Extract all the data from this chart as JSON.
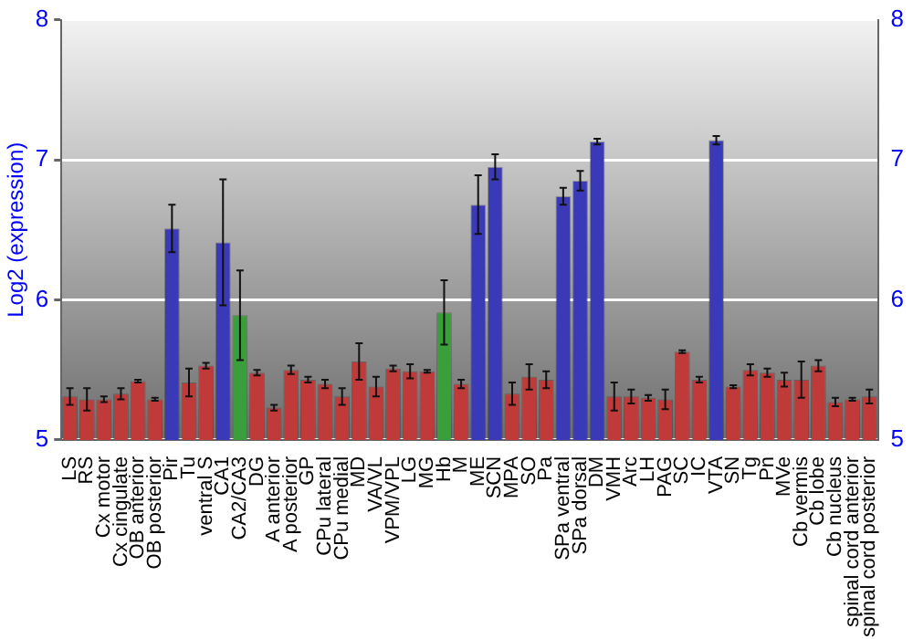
{
  "chart_data": {
    "type": "bar",
    "ylabel": "Log2 (expression)",
    "categories": [
      "LS",
      "RS",
      "Cx motor",
      "Cx cingulate",
      "OB anterior",
      "OB posterior",
      "Pir",
      "Tu",
      "ventral S",
      "CA1",
      "CA2/CA3",
      "DG",
      "A anterior",
      "A posterior",
      "GP",
      "CPu lateral",
      "CPu medial",
      "MD",
      "VA/VL",
      "VPM/VPL",
      "LG",
      "MG",
      "Hb",
      "M",
      "ME",
      "SCN",
      "MPA",
      "SO",
      "Pa",
      "SPa ventral",
      "SPa dorsal",
      "DM",
      "VMH",
      "Arc",
      "LH",
      "PAG",
      "SC",
      "IC",
      "VTA",
      "SN",
      "Tg",
      "Pn",
      "MVe",
      "Cb vermis",
      "Cb lobe",
      "Cb nucleus",
      "spinal cord anterior",
      "spinal cord posterior"
    ],
    "values": [
      5.31,
      5.29,
      5.29,
      5.33,
      5.42,
      5.29,
      6.51,
      5.41,
      5.53,
      6.41,
      5.89,
      5.48,
      5.23,
      5.5,
      5.43,
      5.4,
      5.31,
      5.56,
      5.38,
      5.51,
      5.49,
      5.49,
      5.91,
      5.4,
      6.68,
      6.95,
      5.33,
      5.45,
      5.43,
      6.74,
      6.85,
      7.13,
      5.31,
      5.31,
      5.3,
      5.29,
      5.63,
      5.43,
      7.14,
      5.38,
      5.5,
      5.48,
      5.43,
      5.43,
      5.53,
      5.27,
      5.29,
      5.31
    ],
    "errors": [
      0.06,
      0.08,
      0.02,
      0.04,
      0.01,
      0.01,
      0.17,
      0.1,
      0.02,
      0.45,
      0.32,
      0.02,
      0.02,
      0.03,
      0.02,
      0.03,
      0.06,
      0.13,
      0.07,
      0.02,
      0.05,
      0.01,
      0.23,
      0.03,
      0.21,
      0.09,
      0.08,
      0.09,
      0.06,
      0.06,
      0.07,
      0.02,
      0.1,
      0.05,
      0.02,
      0.07,
      0.01,
      0.02,
      0.03,
      0.01,
      0.04,
      0.03,
      0.05,
      0.13,
      0.04,
      0.03,
      0.01,
      0.05
    ],
    "colors": [
      "#c03a3a",
      "#c03a3a",
      "#c03a3a",
      "#c03a3a",
      "#c03a3a",
      "#c03a3a",
      "#3a3ab8",
      "#c03a3a",
      "#c03a3a",
      "#3a3ab8",
      "#3a9e3a",
      "#c03a3a",
      "#c03a3a",
      "#c03a3a",
      "#c03a3a",
      "#c03a3a",
      "#c03a3a",
      "#c03a3a",
      "#c03a3a",
      "#c03a3a",
      "#c03a3a",
      "#c03a3a",
      "#3a9e3a",
      "#c03a3a",
      "#3a3ab8",
      "#3a3ab8",
      "#c03a3a",
      "#c03a3a",
      "#c03a3a",
      "#3a3ab8",
      "#3a3ab8",
      "#3a3ab8",
      "#c03a3a",
      "#c03a3a",
      "#c03a3a",
      "#c03a3a",
      "#c03a3a",
      "#c03a3a",
      "#3a3ab8",
      "#c03a3a",
      "#c03a3a",
      "#c03a3a",
      "#c03a3a",
      "#c03a3a",
      "#c03a3a",
      "#c03a3a",
      "#c03a3a",
      "#c03a3a"
    ],
    "ylim": [
      5,
      8
    ],
    "yticks": [
      5,
      6,
      7,
      8
    ],
    "y2lim": [
      5,
      8
    ],
    "y2ticks": [
      5,
      6,
      7,
      8
    ],
    "grid": "y",
    "legend": false
  }
}
